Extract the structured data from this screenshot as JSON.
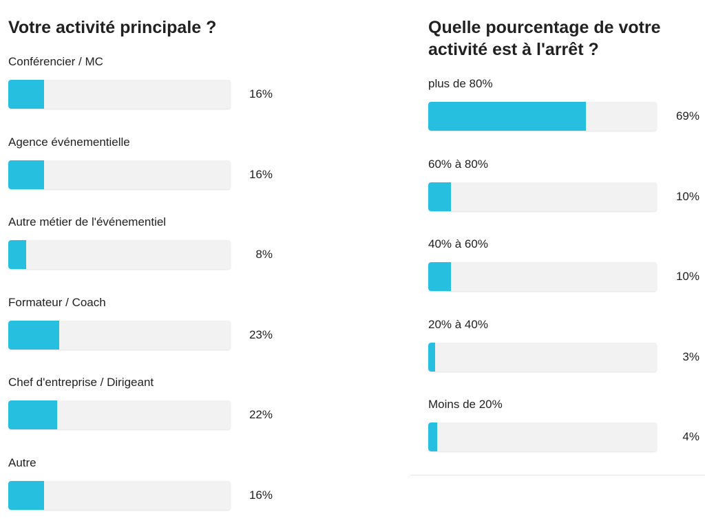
{
  "colors": {
    "bar": "#27bfe0",
    "track": "#f2f2f2"
  },
  "chart_data": [
    {
      "type": "bar",
      "orientation": "horizontal",
      "title": "Votre activité principale ?",
      "categories": [
        "Conférencier / MC",
        "Agence événementielle",
        "Autre métier de l'événementiel",
        "Formateur / Coach",
        "Chef d'entreprise / Dirigeant",
        "Autre"
      ],
      "values": [
        16,
        16,
        8,
        23,
        22,
        16
      ],
      "value_labels": [
        "16%",
        "16%",
        "8%",
        "23%",
        "22%",
        "16%"
      ],
      "xlim": [
        0,
        100
      ]
    },
    {
      "type": "bar",
      "orientation": "horizontal",
      "title": "Quelle pourcentage de votre activité est à l'arrêt ?",
      "categories": [
        "plus de 80%",
        "60% à 80%",
        "40% à 60%",
        "20% à 40%",
        "Moins de 20%"
      ],
      "values": [
        69,
        10,
        10,
        3,
        4
      ],
      "value_labels": [
        "69%",
        "10%",
        "10%",
        "3%",
        "4%"
      ],
      "xlim": [
        0,
        100
      ]
    }
  ]
}
